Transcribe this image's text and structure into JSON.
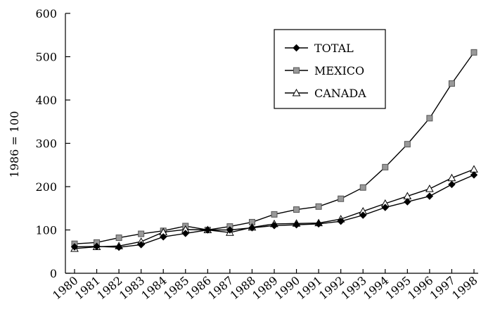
{
  "chart_data": {
    "type": "line",
    "title": "",
    "xlabel": "",
    "ylabel": "1986 = 100",
    "ylim": [
      0,
      600
    ],
    "yticks": [
      0,
      100,
      200,
      300,
      400,
      500,
      600
    ],
    "grid": false,
    "legend_position": "top-right",
    "x": [
      "1980",
      "1981",
      "1982",
      "1983",
      "1984",
      "1985",
      "1986",
      "1987",
      "1988",
      "1989",
      "1990",
      "1991",
      "1992",
      "1993",
      "1994",
      "1995",
      "1996",
      "1997",
      "1998"
    ],
    "series": [
      {
        "name": "TOTAL",
        "marker": "diamond-filled",
        "color": "#000000",
        "values": [
          61,
          62,
          60,
          66,
          84,
          92,
          100,
          100,
          105,
          110,
          112,
          114,
          120,
          134,
          152,
          165,
          178,
          205,
          227
        ]
      },
      {
        "name": "MEXICO",
        "marker": "square-gray",
        "color": "#999999",
        "values": [
          68,
          71,
          82,
          91,
          98,
          109,
          100,
          108,
          118,
          136,
          147,
          154,
          172,
          198,
          245,
          298,
          358,
          438,
          510
        ]
      },
      {
        "name": "CANADA",
        "marker": "triangle-open",
        "color": "#ffffff",
        "values": [
          57,
          61,
          63,
          73,
          95,
          101,
          100,
          94,
          106,
          114,
          115,
          116,
          125,
          143,
          161,
          178,
          195,
          220,
          240
        ]
      }
    ]
  }
}
